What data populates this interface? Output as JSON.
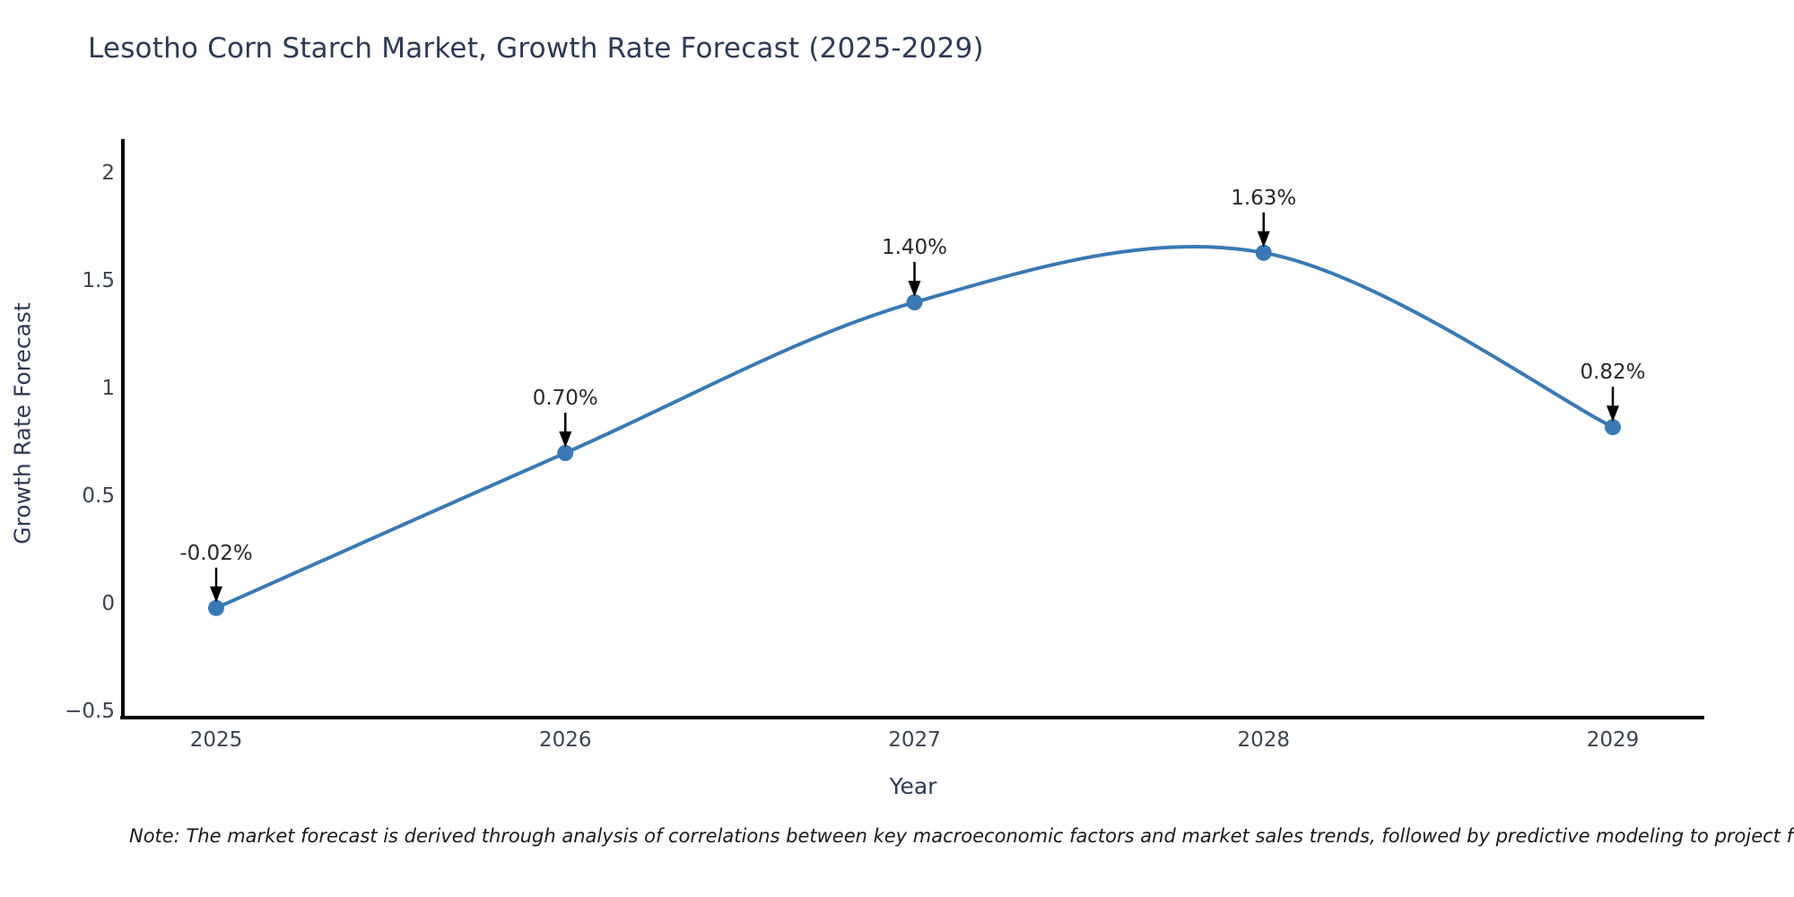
{
  "title": "Lesotho Corn Starch Market, Growth Rate Forecast (2025-2029)",
  "note": "Note: The market forecast is derived through analysis of correlations between key macroeconomic factors and market sales trends, followed by predictive modeling to project future sales",
  "chart_data": {
    "type": "line",
    "title": "Lesotho Corn Starch Market, Growth Rate Forecast (2025-2029)",
    "xlabel": "Year",
    "ylabel": "Growth Rate Forecast",
    "x": [
      2025,
      2026,
      2027,
      2028,
      2029
    ],
    "values": [
      -0.02,
      0.7,
      1.4,
      1.63,
      0.82
    ],
    "point_labels": [
      "-0.02%",
      "0.70%",
      "1.40%",
      "1.63%",
      "0.82%"
    ],
    "x_tick_labels": [
      "2025",
      "2026",
      "2027",
      "2028",
      "2029"
    ],
    "y_ticks": [
      2,
      1.5,
      1,
      0.5,
      0,
      -0.5
    ],
    "y_tick_labels": [
      "2",
      "1.5",
      "1",
      "0.5",
      "0",
      "−0.5"
    ],
    "ylim": [
      -0.55,
      2.16
    ],
    "grid": false,
    "legend": "none",
    "line_smoothing": "spline",
    "colors": {
      "line": "#3879b6",
      "marker": "#3879b6",
      "axis": "#000000",
      "arrow": "#000000",
      "title_text": "#2c3a58",
      "tick_text": "#3b4450",
      "annotation_text": "#26282b"
    }
  }
}
